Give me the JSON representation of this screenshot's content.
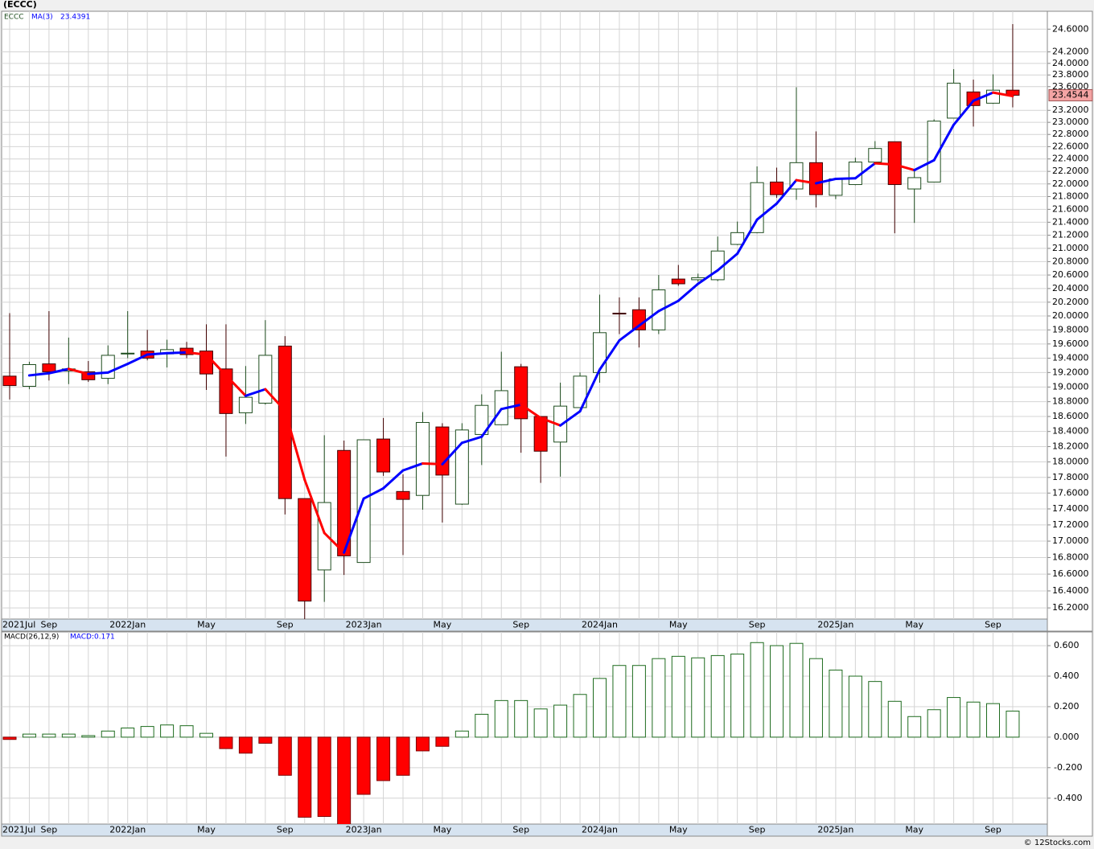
{
  "chart_data": [
    {
      "type": "candlestick",
      "title": "(ECCC)",
      "symbol": "ECCC",
      "categories": [
        "2021Jul",
        null,
        "Sep",
        null,
        null,
        null,
        "2022Jan",
        null,
        null,
        null,
        "May",
        null,
        null,
        null,
        "Sep",
        null,
        null,
        null,
        "2023Jan",
        null,
        null,
        null,
        "May",
        null,
        null,
        null,
        "Sep",
        null,
        null,
        null,
        "2024Jan",
        null,
        null,
        null,
        "May",
        null,
        null,
        null,
        "Sep",
        null,
        null,
        null,
        "2025Jan",
        null,
        null,
        null,
        "May",
        null,
        null,
        null,
        "Sep",
        null
      ],
      "open": [
        19.15,
        19.01,
        19.32,
        19.22,
        19.21,
        19.12,
        19.46,
        19.5,
        19.46,
        19.54,
        19.5,
        19.25,
        18.65,
        18.78,
        19.57,
        17.53,
        16.65,
        18.15,
        16.74,
        18.3,
        17.62,
        17.57,
        18.46,
        17.46,
        18.36,
        18.49,
        19.28,
        18.6,
        18.26,
        18.72,
        19.2,
        20.04,
        20.09,
        19.8,
        20.54,
        20.53,
        20.53,
        21.06,
        21.24,
        22.03,
        21.92,
        22.34,
        21.82,
        21.99,
        22.35,
        22.68,
        21.92,
        22.03,
        23.07,
        23.51,
        23.32,
        23.54
      ],
      "high": [
        20.04,
        19.35,
        20.07,
        19.69,
        19.36,
        19.58,
        20.07,
        19.8,
        19.66,
        19.63,
        19.88,
        19.88,
        19.29,
        19.94,
        19.71,
        17.53,
        18.35,
        18.28,
        18.29,
        18.58,
        17.84,
        18.66,
        18.51,
        18.51,
        18.9,
        19.49,
        19.32,
        18.6,
        19.06,
        19.2,
        20.31,
        20.27,
        20.27,
        20.6,
        20.75,
        20.62,
        21.18,
        21.41,
        22.28,
        22.26,
        23.59,
        22.85,
        22.08,
        22.42,
        22.69,
        22.68,
        22.21,
        23.05,
        23.9,
        23.72,
        23.81,
        24.69
      ],
      "low": [
        18.83,
        18.97,
        19.09,
        19.04,
        19.07,
        19.04,
        19.4,
        19.37,
        19.27,
        19.4,
        18.96,
        18.07,
        18.5,
        18.76,
        17.33,
        16.07,
        16.27,
        16.59,
        16.74,
        17.82,
        16.83,
        17.39,
        17.23,
        17.45,
        17.96,
        18.49,
        18.12,
        17.73,
        17.81,
        18.72,
        19.06,
        19.74,
        19.55,
        19.74,
        20.44,
        20.5,
        20.51,
        21.05,
        21.23,
        21.78,
        21.75,
        21.63,
        21.76,
        21.98,
        22.33,
        21.23,
        21.39,
        22.03,
        23.07,
        22.93,
        23.31,
        23.25
      ],
      "close": [
        19.02,
        19.31,
        19.21,
        19.25,
        19.1,
        19.44,
        19.47,
        19.4,
        19.52,
        19.45,
        19.18,
        18.64,
        18.86,
        19.44,
        17.53,
        16.28,
        17.48,
        16.82,
        18.29,
        17.87,
        17.52,
        18.52,
        17.83,
        18.42,
        18.75,
        18.95,
        18.57,
        18.14,
        18.74,
        19.15,
        19.76,
        20.03,
        19.8,
        20.38,
        20.47,
        20.56,
        20.96,
        21.24,
        22.02,
        21.83,
        22.34,
        21.83,
        22.08,
        22.35,
        22.57,
        21.99,
        22.1,
        23.02,
        23.66,
        23.28,
        23.54,
        23.4544
      ],
      "up_color": "#ffffff",
      "up_edge_color": "#1e4d1e",
      "down_color": "#ff0000",
      "down_edge_color": "#400000",
      "series": [
        {
          "name": "MA(3)",
          "color": "#0000ff",
          "down_color": "#ff0000",
          "values": [
            null,
            19.16,
            19.19,
            19.25,
            19.18,
            19.2,
            19.32,
            19.45,
            19.47,
            19.48,
            19.45,
            19.16,
            18.88,
            18.97,
            18.68,
            17.77,
            17.1,
            16.86,
            17.53,
            17.66,
            17.89,
            17.98,
            17.97,
            18.25,
            18.33,
            18.7,
            18.76,
            18.58,
            18.48,
            18.67,
            19.24,
            19.65,
            19.86,
            20.07,
            20.22,
            20.47,
            20.67,
            20.92,
            21.44,
            21.69,
            22.06,
            22.01,
            22.08,
            22.09,
            22.33,
            22.31,
            22.22,
            22.38,
            22.96,
            23.36,
            23.5,
            23.4391
          ]
        }
      ],
      "ylim": [
        16.07,
        24.92
      ],
      "log_scale": true,
      "grid": true,
      "yticks": [
        {
          "value": 16.2,
          "label": "16.2000"
        },
        {
          "value": 16.4,
          "label": "16.4000"
        },
        {
          "value": 16.6,
          "label": "16.6000"
        },
        {
          "value": 16.8,
          "label": "16.8000"
        },
        {
          "value": 17.0,
          "label": "17.0000"
        },
        {
          "value": 17.2,
          "label": "17.2000"
        },
        {
          "value": 17.4,
          "label": "17.4000"
        },
        {
          "value": 17.6,
          "label": "17.6000"
        },
        {
          "value": 17.8,
          "label": "17.8000"
        },
        {
          "value": 18.0,
          "label": "18.0000"
        },
        {
          "value": 18.2,
          "label": "18.2000"
        },
        {
          "value": 18.4,
          "label": "18.4000"
        },
        {
          "value": 18.6,
          "label": "18.6000"
        },
        {
          "value": 18.8,
          "label": "18.8000"
        },
        {
          "value": 19.0,
          "label": "19.0000"
        },
        {
          "value": 19.2,
          "label": "19.2000"
        },
        {
          "value": 19.4,
          "label": "19.4000"
        },
        {
          "value": 19.6,
          "label": "19.6000"
        },
        {
          "value": 19.8,
          "label": "19.8000"
        },
        {
          "value": 20.0,
          "label": "20.0000"
        },
        {
          "value": 20.2,
          "label": "20.2000"
        },
        {
          "value": 20.4,
          "label": "20.4000"
        },
        {
          "value": 20.6,
          "label": "20.6000"
        },
        {
          "value": 20.8,
          "label": "20.8000"
        },
        {
          "value": 21.0,
          "label": "21.0000"
        },
        {
          "value": 21.2,
          "label": "21.2000"
        },
        {
          "value": 21.4,
          "label": "21.4000"
        },
        {
          "value": 21.6,
          "label": "21.6000"
        },
        {
          "value": 21.8,
          "label": "21.8000"
        },
        {
          "value": 22.0,
          "label": "22.0000"
        },
        {
          "value": 22.2,
          "label": "22.2000"
        },
        {
          "value": 22.4,
          "label": "22.4000"
        },
        {
          "value": 22.6,
          "label": "22.6000"
        },
        {
          "value": 22.8,
          "label": "22.8000"
        },
        {
          "value": 23.0,
          "label": "23.0000"
        },
        {
          "value": 23.2,
          "label": "23.2000"
        },
        {
          "value": 23.6,
          "label": "23.6000"
        },
        {
          "value": 23.8,
          "label": "23.8000"
        },
        {
          "value": 24.0,
          "label": "24.0000"
        },
        {
          "value": 24.2,
          "label": "24.2000"
        },
        {
          "value": 24.6,
          "label": "24.6000"
        }
      ],
      "price_tag_color": "#f4a4a4"
    },
    {
      "type": "bar",
      "title": "MACD(26,12,9)",
      "legend": "MACD:0.171",
      "categories": [
        "2021Jul",
        null,
        "Sep",
        null,
        null,
        null,
        "2022Jan",
        null,
        null,
        null,
        "May",
        null,
        null,
        null,
        "Sep",
        null,
        null,
        null,
        "2023Jan",
        null,
        null,
        null,
        "May",
        null,
        null,
        null,
        "Sep",
        null,
        null,
        null,
        "2024Jan",
        null,
        null,
        null,
        "May",
        null,
        null,
        null,
        "Sep",
        null,
        null,
        null,
        "2025Jan",
        null,
        null,
        null,
        "May",
        null,
        null,
        null,
        "Sep",
        null
      ],
      "values": [
        -0.015,
        0.02,
        0.02,
        0.02,
        0.01,
        0.04,
        0.06,
        0.07,
        0.08,
        0.075,
        0.025,
        -0.075,
        -0.105,
        -0.04,
        -0.25,
        -0.525,
        -0.52,
        -0.59,
        -0.375,
        -0.285,
        -0.25,
        -0.09,
        -0.06,
        0.04,
        0.15,
        0.24,
        0.24,
        0.185,
        0.21,
        0.28,
        0.385,
        0.47,
        0.47,
        0.515,
        0.53,
        0.52,
        0.535,
        0.545,
        0.62,
        0.6,
        0.615,
        0.515,
        0.44,
        0.4,
        0.365,
        0.235,
        0.135,
        0.18,
        0.26,
        0.23,
        0.22,
        0.171
      ],
      "color": "#1e6b1e",
      "negative_color": "#ff0000",
      "ylim": [
        -0.57,
        0.69
      ],
      "grid": true,
      "yticks": [
        {
          "value": -0.4,
          "label": "-0.400"
        },
        {
          "value": -0.2,
          "label": "-0.200"
        },
        {
          "value": 0,
          "label": "0.000"
        },
        {
          "value": 0.2,
          "label": "0.200"
        },
        {
          "value": 0.4,
          "label": "0.400"
        },
        {
          "value": 0.6,
          "label": "0.600"
        }
      ]
    }
  ],
  "credit": "© 12Stocks.com"
}
